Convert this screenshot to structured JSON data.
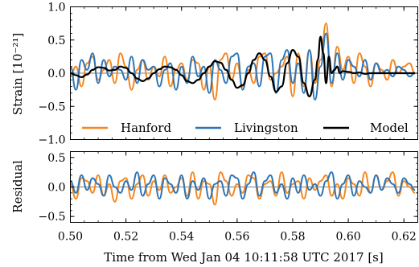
{
  "colors": {
    "hanford": "#f5871f",
    "livingston": "#2e75b6",
    "model": "#000000",
    "zero_line": "#000000"
  },
  "chart_data": [
    {
      "panel": "top",
      "type": "line",
      "ylabel": "Strain [10⁻²¹]",
      "xlim": [
        0.5,
        0.625
      ],
      "ylim": [
        -1.0,
        1.0
      ],
      "yticks": [
        1.0,
        0.5,
        0.0,
        -0.5,
        -1.0
      ],
      "ytick_labels": [
        "1.0",
        "0.5",
        "0.0",
        "−0.5",
        "−1.0"
      ],
      "legend": {
        "placement": "lower-center",
        "entries": [
          "Hanford",
          "Livingston",
          "Model"
        ]
      },
      "series": [
        {
          "name": "Hanford",
          "color_key": "hanford",
          "x": [
            0.5,
            0.502,
            0.504,
            0.506,
            0.508,
            0.51,
            0.512,
            0.514,
            0.516,
            0.518,
            0.52,
            0.522,
            0.524,
            0.526,
            0.528,
            0.53,
            0.532,
            0.534,
            0.536,
            0.538,
            0.54,
            0.542,
            0.544,
            0.546,
            0.548,
            0.55,
            0.552,
            0.554,
            0.556,
            0.558,
            0.56,
            0.562,
            0.564,
            0.566,
            0.568,
            0.57,
            0.572,
            0.574,
            0.576,
            0.578,
            0.58,
            0.582,
            0.584,
            0.586,
            0.588,
            0.59,
            0.592,
            0.594,
            0.596,
            0.598,
            0.6,
            0.602,
            0.604,
            0.606,
            0.608,
            0.61,
            0.612,
            0.614,
            0.616,
            0.618,
            0.62,
            0.622,
            0.624
          ],
          "y": [
            -0.05,
            0.1,
            -0.2,
            0.15,
            0.25,
            -0.1,
            0.05,
            0.2,
            -0.15,
            0.3,
            0.1,
            -0.25,
            0.05,
            0.2,
            -0.1,
            0.1,
            -0.05,
            0.25,
            -0.2,
            0.05,
            0.15,
            -0.1,
            0.2,
            0.15,
            -0.25,
            0.1,
            -0.4,
            0.2,
            0.3,
            -0.1,
            0.15,
            -0.2,
            0.05,
            -0.15,
            0.25,
            0.3,
            -0.1,
            0.0,
            0.1,
            0.25,
            -0.35,
            0.3,
            -0.2,
            0.35,
            -0.15,
            0.2,
            0.75,
            -0.2,
            0.4,
            0.05,
            0.25,
            -0.15,
            0.3,
            0.1,
            -0.2,
            0.15,
            0.05,
            -0.1,
            0.2,
            0.0,
            0.1,
            0.15,
            0.0
          ]
        },
        {
          "name": "Livingston",
          "color_key": "livingston",
          "x": [
            0.5,
            0.502,
            0.504,
            0.506,
            0.508,
            0.51,
            0.512,
            0.514,
            0.516,
            0.518,
            0.52,
            0.522,
            0.524,
            0.526,
            0.528,
            0.53,
            0.532,
            0.534,
            0.536,
            0.538,
            0.54,
            0.542,
            0.544,
            0.546,
            0.548,
            0.55,
            0.552,
            0.554,
            0.556,
            0.558,
            0.56,
            0.562,
            0.564,
            0.566,
            0.568,
            0.57,
            0.572,
            0.574,
            0.576,
            0.578,
            0.58,
            0.582,
            0.584,
            0.586,
            0.588,
            0.59,
            0.592,
            0.594,
            0.596,
            0.598,
            0.6,
            0.602,
            0.604,
            0.606,
            0.608,
            0.61,
            0.612,
            0.614,
            0.616,
            0.618,
            0.62,
            0.622,
            0.624
          ],
          "y": [
            0.1,
            -0.25,
            0.2,
            0.05,
            0.3,
            -0.15,
            0.2,
            -0.05,
            0.1,
            0.05,
            -0.1,
            0.25,
            -0.15,
            0.2,
            0.05,
            0.1,
            -0.2,
            0.05,
            0.15,
            -0.25,
            0.1,
            -0.15,
            0.25,
            -0.05,
            0.1,
            -0.3,
            0.2,
            0.05,
            -0.15,
            0.25,
            0.3,
            -0.25,
            0.1,
            0.15,
            -0.2,
            0.25,
            0.3,
            -0.3,
            0.2,
            0.35,
            -0.15,
            0.15,
            -0.3,
            0.35,
            -0.4,
            0.1,
            0.6,
            -0.15,
            0.3,
            -0.1,
            0.2,
            0.1,
            -0.05,
            0.2,
            -0.1,
            0.15,
            0.0,
            0.05,
            -0.05,
            0.1,
            0.05,
            -0.05,
            0.0
          ]
        },
        {
          "name": "Model",
          "color_key": "model",
          "x": [
            0.5,
            0.502,
            0.504,
            0.506,
            0.508,
            0.51,
            0.512,
            0.514,
            0.516,
            0.518,
            0.52,
            0.522,
            0.524,
            0.526,
            0.528,
            0.53,
            0.532,
            0.534,
            0.536,
            0.538,
            0.54,
            0.542,
            0.544,
            0.546,
            0.548,
            0.55,
            0.552,
            0.554,
            0.556,
            0.558,
            0.56,
            0.562,
            0.564,
            0.566,
            0.568,
            0.57,
            0.572,
            0.574,
            0.576,
            0.578,
            0.58,
            0.582,
            0.584,
            0.586,
            0.588,
            0.589,
            0.59,
            0.591,
            0.592,
            0.593,
            0.594,
            0.595,
            0.596,
            0.597,
            0.598,
            0.6,
            0.602,
            0.604,
            0.606,
            0.608,
            0.61,
            0.612,
            0.614,
            0.616,
            0.618,
            0.62,
            0.622,
            0.624
          ],
          "y": [
            0.0,
            -0.03,
            -0.06,
            -0.02,
            0.05,
            0.09,
            0.08,
            0.04,
            0.05,
            0.1,
            0.08,
            0.0,
            -0.08,
            -0.12,
            -0.08,
            0.0,
            0.06,
            0.1,
            0.09,
            0.05,
            -0.03,
            -0.12,
            -0.15,
            -0.1,
            0.0,
            0.1,
            0.18,
            0.16,
            0.05,
            -0.1,
            -0.22,
            -0.18,
            0.0,
            0.2,
            0.3,
            0.2,
            -0.05,
            -0.28,
            -0.2,
            0.15,
            0.35,
            0.25,
            -0.15,
            -0.35,
            -0.1,
            0.2,
            0.55,
            0.3,
            -0.15,
            0.25,
            0.0,
            0.05,
            0.1,
            0.0,
            0.03,
            0.02,
            0.0,
            0.01,
            -0.01,
            0.0,
            0.0,
            0.0,
            0.0,
            0.0,
            0.0,
            0.0,
            0.0,
            0.0
          ]
        }
      ]
    },
    {
      "panel": "bottom",
      "type": "line",
      "ylabel": "Residual",
      "xlabel": "Time from Wed Jan 04 10:11:58 UTC 2017 [s]",
      "xlim": [
        0.5,
        0.625
      ],
      "ylim": [
        -0.6,
        0.6
      ],
      "yticks": [
        0.5,
        0.0,
        -0.5
      ],
      "ytick_labels": [
        "0.5",
        "0.0",
        "−0.5"
      ],
      "xticks": [
        0.5,
        0.52,
        0.54,
        0.56,
        0.58,
        0.6,
        0.62
      ],
      "xtick_labels": [
        "0.50",
        "0.52",
        "0.54",
        "0.56",
        "0.58",
        "0.60",
        "0.62"
      ],
      "series": [
        {
          "name": "Hanford",
          "color_key": "hanford",
          "x": [
            0.5,
            0.502,
            0.504,
            0.506,
            0.508,
            0.51,
            0.512,
            0.514,
            0.516,
            0.518,
            0.52,
            0.522,
            0.524,
            0.526,
            0.528,
            0.53,
            0.532,
            0.534,
            0.536,
            0.538,
            0.54,
            0.542,
            0.544,
            0.546,
            0.548,
            0.55,
            0.552,
            0.554,
            0.556,
            0.558,
            0.56,
            0.562,
            0.564,
            0.566,
            0.568,
            0.57,
            0.572,
            0.574,
            0.576,
            0.578,
            0.58,
            0.582,
            0.584,
            0.586,
            0.588,
            0.59,
            0.592,
            0.594,
            0.596,
            0.598,
            0.6,
            0.602,
            0.604,
            0.606,
            0.608,
            0.61,
            0.612,
            0.614,
            0.616,
            0.618,
            0.62,
            0.622,
            0.624
          ],
          "y": [
            0.05,
            -0.2,
            0.15,
            0.1,
            -0.1,
            0.2,
            -0.15,
            0.05,
            -0.25,
            0.1,
            0.15,
            -0.2,
            0.05,
            0.2,
            -0.15,
            0.1,
            -0.05,
            0.2,
            -0.1,
            0.0,
            0.15,
            -0.15,
            0.25,
            -0.2,
            0.1,
            0.05,
            -0.3,
            0.25,
            0.1,
            -0.15,
            0.05,
            -0.1,
            0.2,
            0.15,
            -0.2,
            0.05,
            0.1,
            -0.15,
            0.25,
            -0.1,
            0.05,
            0.1,
            -0.2,
            0.15,
            -0.05,
            0.1,
            0.2,
            -0.15,
            0.05,
            -0.2,
            0.15,
            0.05,
            -0.15,
            0.25,
            -0.1,
            0.2,
            -0.05,
            0.1,
            0.25,
            -0.15,
            0.1,
            0.0,
            -0.1
          ]
        },
        {
          "name": "Livingston",
          "color_key": "livingston",
          "x": [
            0.5,
            0.502,
            0.504,
            0.506,
            0.508,
            0.51,
            0.512,
            0.514,
            0.516,
            0.518,
            0.52,
            0.522,
            0.524,
            0.526,
            0.528,
            0.53,
            0.532,
            0.534,
            0.536,
            0.538,
            0.54,
            0.542,
            0.544,
            0.546,
            0.548,
            0.55,
            0.552,
            0.554,
            0.556,
            0.558,
            0.56,
            0.562,
            0.564,
            0.566,
            0.568,
            0.57,
            0.572,
            0.574,
            0.576,
            0.578,
            0.58,
            0.582,
            0.584,
            0.586,
            0.588,
            0.59,
            0.592,
            0.594,
            0.596,
            0.598,
            0.6,
            0.602,
            0.604,
            0.606,
            0.608,
            0.61,
            0.612,
            0.614,
            0.616,
            0.618,
            0.62,
            0.622,
            0.624
          ],
          "y": [
            0.1,
            -0.1,
            0.2,
            -0.05,
            0.15,
            0.05,
            -0.15,
            0.2,
            0.0,
            -0.1,
            0.1,
            -0.05,
            0.25,
            -0.15,
            0.05,
            0.2,
            -0.2,
            0.15,
            0.05,
            -0.1,
            0.2,
            -0.2,
            0.1,
            -0.05,
            0.15,
            -0.2,
            0.05,
            0.1,
            -0.15,
            0.2,
            0.15,
            -0.2,
            0.05,
            0.25,
            -0.15,
            0.1,
            0.2,
            -0.1,
            0.05,
            -0.2,
            0.15,
            -0.1,
            0.2,
            -0.05,
            0.05,
            -0.15,
            0.1,
            0.25,
            -0.2,
            0.05,
            0.2,
            -0.15,
            0.1,
            0.0,
            -0.1,
            0.2,
            -0.05,
            0.15,
            0.05,
            -0.1,
            0.15,
            0.05,
            -0.05
          ]
        }
      ]
    }
  ]
}
